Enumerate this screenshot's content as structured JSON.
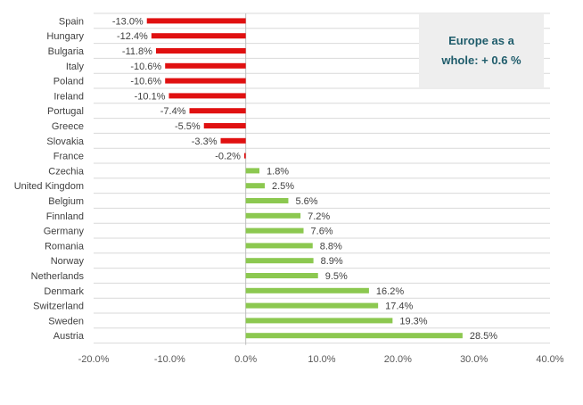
{
  "colors": {
    "negative": "#e01010",
    "positive": "#8cc850",
    "grid": "#d9d9d9",
    "axis": "#bfbfbf"
  },
  "annotation": {
    "text": "Europe as a whole: + 0.6 %"
  },
  "chart_data": {
    "type": "bar",
    "orientation": "horizontal",
    "categories": [
      "Spain",
      "Hungary",
      "Bulgaria",
      "Italy",
      "Poland",
      "Ireland",
      "Portugal",
      "Greece",
      "Slovakia",
      "France",
      "Czechia",
      "United Kingdom",
      "Belgium",
      "Finnland",
      "Germany",
      "Romania",
      "Norway",
      "Netherlands",
      "Denmark",
      "Switzerland",
      "Sweden",
      "Austria"
    ],
    "values": [
      -13.0,
      -12.4,
      -11.8,
      -10.6,
      -10.6,
      -10.1,
      -7.4,
      -5.5,
      -3.3,
      -0.2,
      1.8,
      2.5,
      5.6,
      7.2,
      7.6,
      8.8,
      8.9,
      9.5,
      16.2,
      17.4,
      19.3,
      28.5
    ],
    "value_labels": [
      "-13.0%",
      "-12.4%",
      "-11.8%",
      "-10.6%",
      "-10.6%",
      "-10.1%",
      "-7.4%",
      "-5.5%",
      "-3.3%",
      "-0.2%",
      "1.8%",
      "2.5%",
      "5.6%",
      "7.2%",
      "7.6%",
      "8.8%",
      "8.9%",
      "9.5%",
      "16.2%",
      "17.4%",
      "19.3%",
      "28.5%"
    ],
    "xlim": [
      -20,
      40
    ],
    "x_ticks": [
      -20,
      -10,
      0,
      10,
      20,
      30,
      40
    ],
    "x_tick_labels": [
      "-20.0%",
      "-10.0%",
      "0.0%",
      "10.0%",
      "20.0%",
      "30.0%",
      "40.0%"
    ],
    "grid": true,
    "legend": "none"
  }
}
